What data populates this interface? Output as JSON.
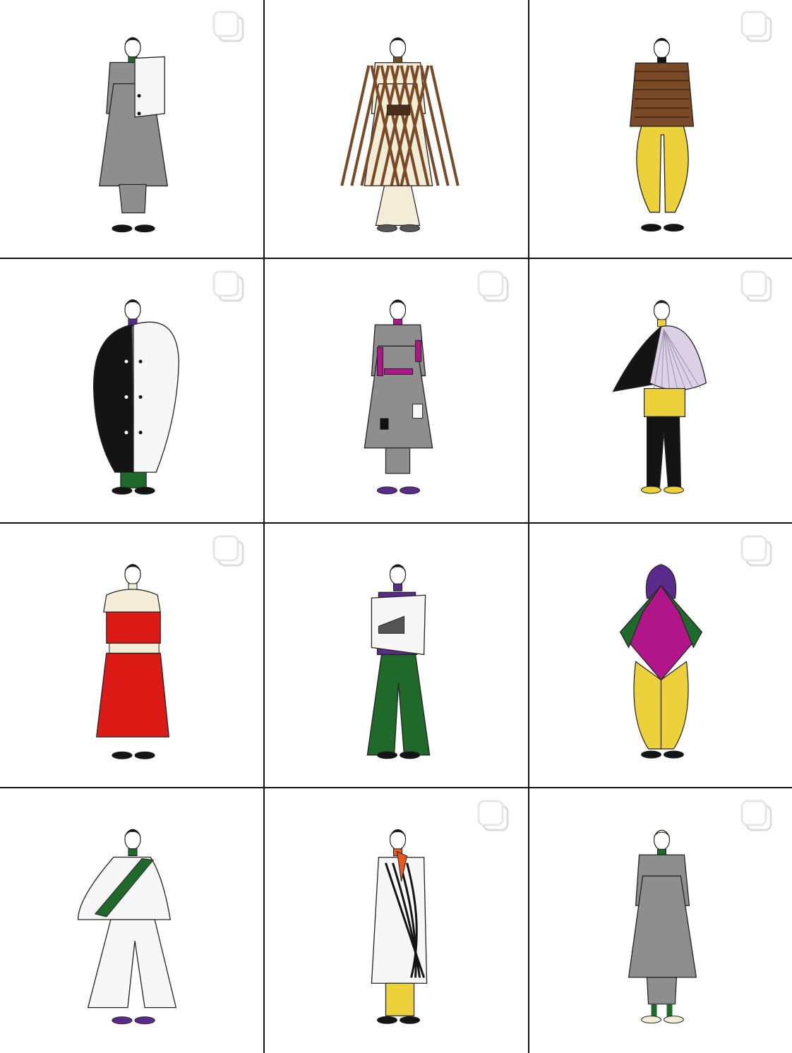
{
  "colors": {
    "background": "#ffffff",
    "divider": "#111111",
    "ink": "#222222",
    "gray": "#8e8e8e",
    "dark_gray": "#555555",
    "black": "#141414",
    "cream": "#f3ecd6",
    "brown": "#7a4a26",
    "dark_brown": "#4c2d19",
    "yellow": "#ecd13b",
    "green": "#1f6a2a",
    "magenta": "#b0158a",
    "purple": "#5b2b8c",
    "red": "#db1a16",
    "lilac": "#dcd0e6",
    "white": "#f7f7f7",
    "orange": "#e8591c"
  },
  "grid": {
    "columns": 3,
    "rows": 4,
    "posts": [
      {
        "id": "grey-cape-coat",
        "multi": true,
        "top": "gray",
        "bottom": "gray",
        "accent": "green",
        "extra": "white",
        "shoes": "black",
        "style": "coat"
      },
      {
        "id": "brown-lattice-cream-suit",
        "multi": false,
        "top": "cream",
        "bottom": "cream",
        "accent": "brown",
        "extra": "dark_brown",
        "shoes": "dark_gray",
        "style": "lattice"
      },
      {
        "id": "brown-jacket-yellow-pants",
        "multi": true,
        "top": "brown",
        "bottom": "yellow",
        "accent": "black",
        "extra": "dark_brown",
        "shoes": "black",
        "style": "jacket"
      },
      {
        "id": "black-white-cocoon-coat",
        "multi": true,
        "top": "black",
        "bottom": "green",
        "accent": "purple",
        "extra": "white",
        "shoes": "black",
        "style": "cocoon"
      },
      {
        "id": "grey-patchwork-suit",
        "multi": true,
        "top": "gray",
        "bottom": "gray",
        "accent": "magenta",
        "extra": "white",
        "shoes": "purple",
        "style": "patch"
      },
      {
        "id": "lilac-pleated-cape",
        "multi": true,
        "top": "lilac",
        "bottom": "black",
        "accent": "yellow",
        "extra": "black",
        "shoes": "yellow",
        "style": "cape"
      },
      {
        "id": "red-dress-cream-capelet",
        "multi": true,
        "top": "red",
        "bottom": "red",
        "accent": "cream",
        "extra": "red",
        "shoes": "black",
        "style": "dress"
      },
      {
        "id": "white-wrap-green-flares",
        "multi": false,
        "top": "white",
        "bottom": "green",
        "accent": "purple",
        "extra": "white",
        "shoes": "black",
        "style": "wrap"
      },
      {
        "id": "magenta-green-kite-poncho",
        "multi": true,
        "top": "magenta",
        "bottom": "yellow",
        "accent": "green",
        "extra": "purple",
        "shoes": "black",
        "style": "kite"
      },
      {
        "id": "white-cape-green-sash",
        "multi": false,
        "top": "white",
        "bottom": "white",
        "accent": "green",
        "extra": "white",
        "shoes": "purple",
        "style": "sash"
      },
      {
        "id": "striped-drape-yellow-pants",
        "multi": true,
        "top": "white",
        "bottom": "yellow",
        "accent": "orange",
        "extra": "black",
        "shoes": "black",
        "style": "drape"
      },
      {
        "id": "grey-suit-fez",
        "multi": true,
        "top": "gray",
        "bottom": "gray",
        "accent": "green",
        "extra": "cream",
        "shoes": "cream",
        "style": "suit"
      }
    ]
  },
  "icons": {
    "multi_post": "multiple-images-icon"
  }
}
